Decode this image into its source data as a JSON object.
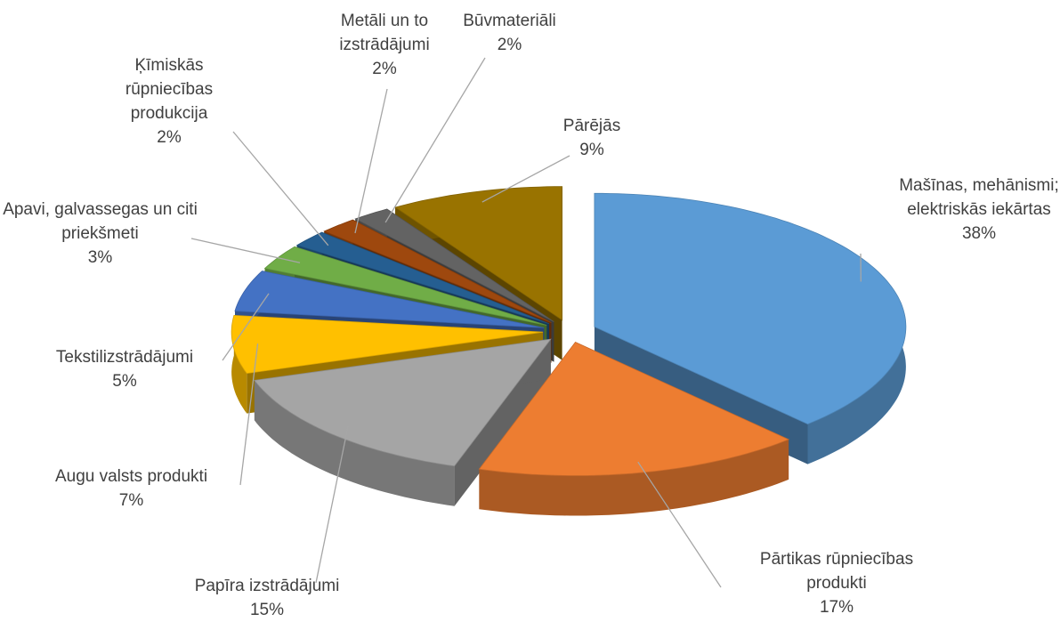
{
  "chart_data": {
    "type": "pie3d",
    "categories": [
      "Mašīnas, mehānismi; elektriskās iekārtas",
      "Pārtikas rūpniecības produkti",
      "Papīra izstrādājumi",
      "Augu valsts produkti",
      "Tekstilizstrādājumi",
      "Apavi, galvassegas un citi priekšmeti",
      "Ķīmiskās rūpniecības produkcija",
      "Metāli un to izstrādājumi",
      "Būvmateriāli",
      "Pārējās"
    ],
    "values": [
      38,
      17,
      15,
      7,
      5,
      3,
      2,
      2,
      2,
      9
    ],
    "value_labels": [
      "38%",
      "17%",
      "15%",
      "7%",
      "5%",
      "3%",
      "2%",
      "2%",
      "2%",
      "9%"
    ],
    "colors": [
      "#5b9bd5",
      "#ed7d31",
      "#a5a5a5",
      "#ffc000",
      "#4472c4",
      "#70ad47",
      "#255e91",
      "#9e480e",
      "#636363",
      "#997300"
    ]
  }
}
